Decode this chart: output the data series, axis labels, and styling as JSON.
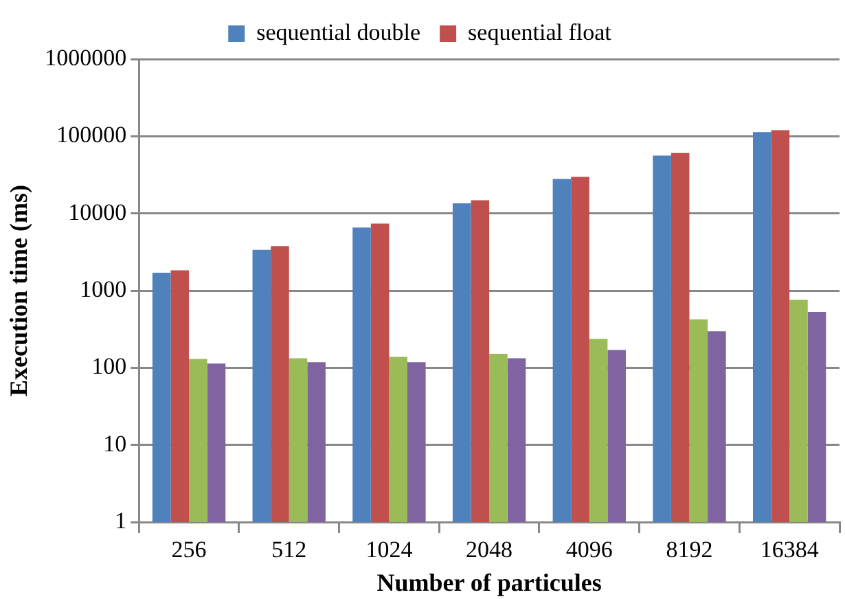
{
  "chart_data": {
    "type": "bar",
    "xlabel": "Number of particules",
    "ylabel": "Execution time (ms)",
    "categories": [
      "256",
      "512",
      "1024",
      "2048",
      "4096",
      "8192",
      "16384"
    ],
    "series": [
      {
        "name": "sequential double",
        "color": "#4f81bd",
        "values": [
          1700,
          3370,
          6560,
          13500,
          28000,
          56000,
          113000
        ]
      },
      {
        "name": "sequential float",
        "color": "#c0504d",
        "values": [
          1830,
          3780,
          7370,
          14800,
          29800,
          60700,
          120000
        ]
      },
      {
        "color": "#9bbb59",
        "values": [
          130,
          133,
          138,
          152,
          237,
          422,
          760
        ]
      },
      {
        "color": "#8064a2",
        "values": [
          113,
          118,
          118,
          133,
          170,
          297,
          530
        ]
      }
    ],
    "log": true,
    "ylim": [
      1,
      1000000
    ],
    "yticks": [
      1,
      10,
      100,
      1000,
      10000,
      100000,
      1000000
    ],
    "grid": "y",
    "legend": "top"
  }
}
